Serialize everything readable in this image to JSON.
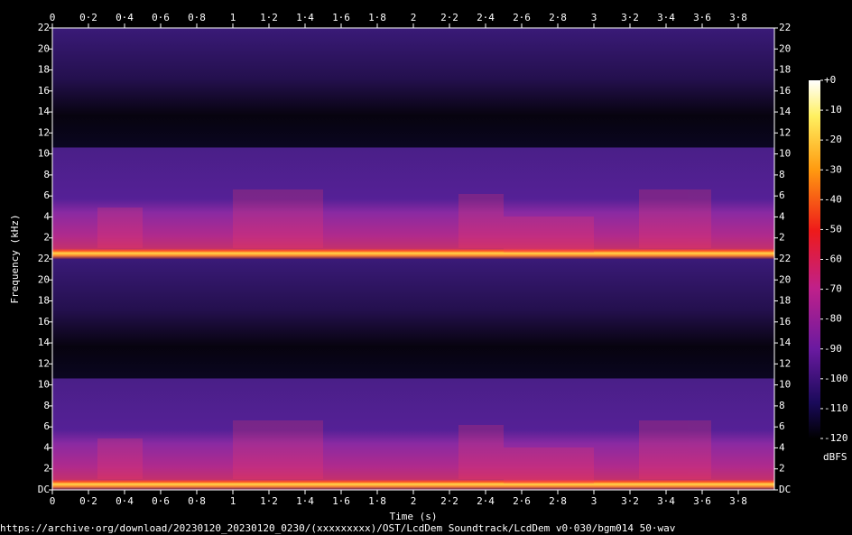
{
  "chart_data": {
    "type": "spectrogram",
    "x_label": "Time (s)",
    "y_label": "Frequency (kHz)",
    "xlim": [
      0,
      4
    ],
    "xticks": [
      0,
      {
        "value": 0.2,
        "label": "0·2"
      },
      {
        "value": 0.4,
        "label": "0·4"
      },
      {
        "value": 0.6,
        "label": "0·6"
      },
      {
        "value": 0.8,
        "label": "0·8"
      },
      1,
      {
        "value": 1.2,
        "label": "1·2"
      },
      {
        "value": 1.4,
        "label": "1·4"
      },
      {
        "value": 1.6,
        "label": "1·6"
      },
      {
        "value": 1.8,
        "label": "1·8"
      },
      2,
      {
        "value": 2.2,
        "label": "2·2"
      },
      {
        "value": 2.4,
        "label": "2·4"
      },
      {
        "value": 2.6,
        "label": "2·6"
      },
      {
        "value": 2.8,
        "label": "2·8"
      },
      3,
      {
        "value": 3.2,
        "label": "3·2"
      },
      {
        "value": 3.4,
        "label": "3·4"
      },
      {
        "value": 3.6,
        "label": "3·6"
      },
      {
        "value": 3.8,
        "label": "3·8"
      }
    ],
    "channels": [
      {
        "ylim": [
          0,
          22
        ],
        "yticks": [
          2,
          4,
          6,
          8,
          10,
          12,
          14,
          16,
          18,
          20,
          22
        ]
      },
      {
        "ylim": [
          0,
          22
        ],
        "yticks": [
          {
            "value": 0,
            "label": "DC"
          },
          2,
          4,
          6,
          8,
          10,
          12,
          14,
          16,
          18,
          20,
          22
        ]
      }
    ],
    "colorbar": {
      "label": "dBFS",
      "lim": [
        -120,
        0
      ],
      "ticks": [
        {
          "value": 0,
          "label": "+0"
        },
        -10,
        -20,
        -30,
        -40,
        -50,
        -60,
        -70,
        -80,
        -90,
        -100,
        -110,
        -120
      ]
    },
    "footer": "https://archive·org/download/20230120_20230120_0230/(xxxxxxxxx)/OST/LcdDem Soundtrack/LcdDem v0·030/bgm014 50·wav"
  }
}
